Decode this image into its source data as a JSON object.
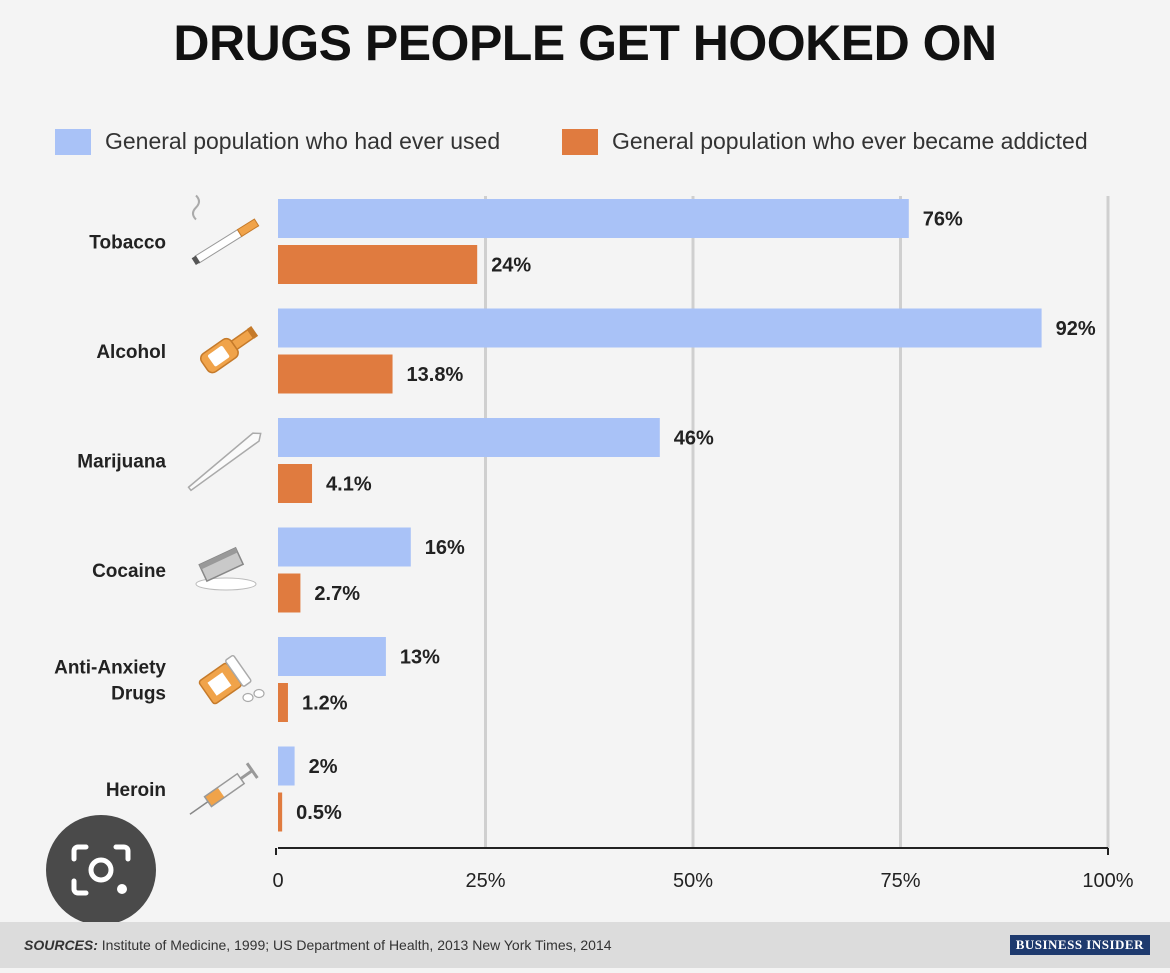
{
  "chart_data": {
    "type": "bar",
    "orientation": "horizontal",
    "title": "DRUGS PEOPLE GET HOOKED ON",
    "categories": [
      "Tobacco",
      "Alcohol",
      "Marijuana",
      "Cocaine",
      "Anti-Anxiety Drugs",
      "Heroin"
    ],
    "category_lines": [
      [
        "Tobacco"
      ],
      [
        "Alcohol"
      ],
      [
        "Marijuana"
      ],
      [
        "Cocaine"
      ],
      [
        "Anti-Anxiety",
        "Drugs"
      ],
      [
        "Heroin"
      ]
    ],
    "series": [
      {
        "name": "General population who had ever used",
        "color": "#a9c2f7",
        "values": [
          76,
          92,
          46,
          16,
          13,
          2
        ],
        "labels": [
          "76%",
          "92%",
          "46%",
          "16%",
          "13%",
          "2%"
        ]
      },
      {
        "name": "General population who ever became addicted",
        "color": "#e07b3f",
        "values": [
          24,
          13.8,
          4.1,
          2.7,
          1.2,
          0.5
        ],
        "labels": [
          "24%",
          "13.8%",
          "4.1%",
          "2.7%",
          "1.2%",
          "0.5%"
        ]
      }
    ],
    "xlim": [
      0,
      100
    ],
    "xticks": [
      0,
      25,
      50,
      75,
      100
    ],
    "xtick_labels": [
      "0",
      "25%",
      "50%",
      "75%",
      "100%"
    ],
    "grid": true,
    "legend_position": "top",
    "icons": [
      "cigarette-icon",
      "bottle-icon",
      "joint-icon",
      "razor-icon",
      "pill-bottle-icon",
      "syringe-icon"
    ]
  },
  "footer": {
    "sources_prefix": "SOURCES:",
    "sources_text": " Institute of Medicine, 1999; US Department of Health, 2013 New York Times, 2014",
    "brand": "BUSINESS INSIDER"
  }
}
